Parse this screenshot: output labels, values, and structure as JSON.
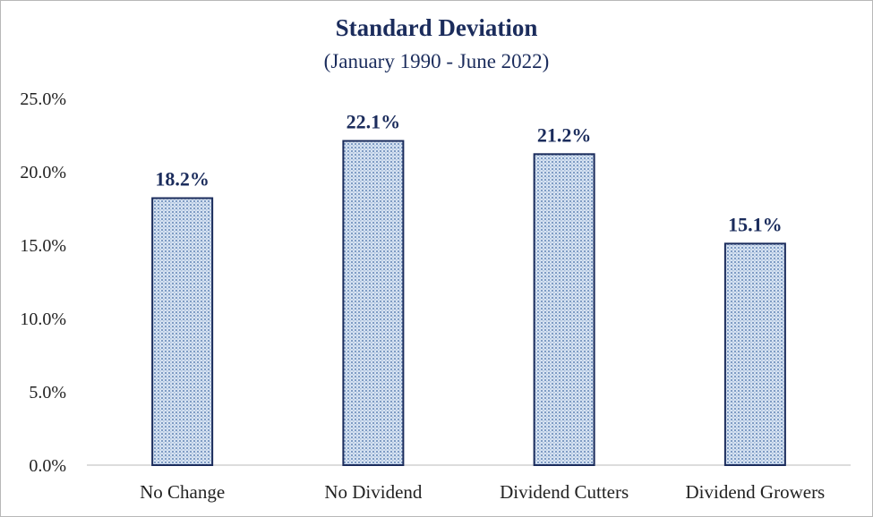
{
  "chart_data": {
    "type": "bar",
    "title": "Standard Deviation",
    "subtitle": "(January 1990 - June 2022)",
    "categories": [
      "No Change",
      "No Dividend",
      "Dividend Cutters",
      "Dividend Growers"
    ],
    "values": [
      18.2,
      22.1,
      21.2,
      15.1
    ],
    "data_labels": [
      "18.2%",
      "22.1%",
      "21.2%",
      "15.1%"
    ],
    "ylim": [
      0,
      25
    ],
    "yticks": [
      0,
      5,
      10,
      15,
      20,
      25
    ],
    "ytick_labels": [
      "0.0%",
      "5.0%",
      "10.0%",
      "15.0%",
      "20.0%",
      "25.0%"
    ],
    "xlabel": "",
    "ylabel": "",
    "grid": false,
    "legend": "none",
    "colors": {
      "bar_fill": "#c9d8ec",
      "bar_pattern": "#7f9cc4",
      "bar_border": "#1b2c5c",
      "text": "#1b2c5c",
      "axis": "#d0d0d0"
    }
  }
}
